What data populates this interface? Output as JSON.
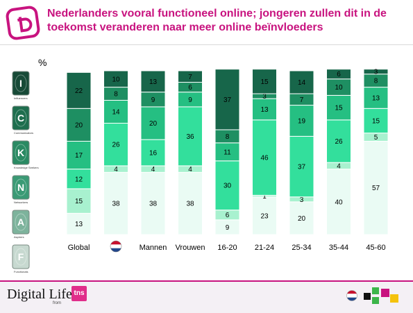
{
  "header": {
    "title_line1": "Nederlanders vooral functioneel online; jongeren zullen dit in de",
    "title_line2": "toekomst veranderen naar meer online beïnvloeders"
  },
  "unit_label": "%",
  "legend": [
    {
      "letter": "I",
      "name": "Influencers"
    },
    {
      "letter": "C",
      "name": "Communicators"
    },
    {
      "letter": "K",
      "name": "Knowledge Seekers"
    },
    {
      "letter": "N",
      "name": "Networkers"
    },
    {
      "letter": "A",
      "name": "Aspirers"
    },
    {
      "letter": "F",
      "name": "Functionals"
    }
  ],
  "footer": {
    "brand": "Digital Life",
    "brand_sub": "from",
    "tns_label": "tns",
    "flag_icon": "netherlands-flag-icon",
    "logo_icon": "colored-squares-logo-icon"
  },
  "colors": {
    "title": "#c8137f",
    "I": "#17664a",
    "C": "#1e8f62",
    "K": "#25bf82",
    "N": "#33df9c",
    "A": "#a8f1cf",
    "F": "#eafbf4"
  },
  "chart_data": {
    "type": "bar",
    "stacked": true,
    "categories": [
      "Global",
      "netherlands-flag-icon",
      "Mannen",
      "Vrouwen",
      "16-20",
      "21-24",
      "25-34",
      "35-44",
      "45-60"
    ],
    "series": [
      {
        "name": "Functionals",
        "values": [
          13,
          38,
          38,
          38,
          9,
          23,
          20,
          40,
          57
        ]
      },
      {
        "name": "Aspirers",
        "values": [
          15,
          4,
          4,
          4,
          6,
          1,
          3,
          4,
          5
        ]
      },
      {
        "name": "Networkers",
        "values": [
          12,
          26,
          16,
          36,
          30,
          46,
          37,
          26,
          15
        ]
      },
      {
        "name": "Knowledge Seekers",
        "values": [
          17,
          14,
          20,
          9,
          11,
          13,
          19,
          15,
          13
        ]
      },
      {
        "name": "Communicators",
        "values": [
          20,
          8,
          9,
          6,
          8,
          3,
          7,
          10,
          8
        ]
      },
      {
        "name": "Influencers",
        "values": [
          22,
          10,
          13,
          7,
          37,
          15,
          14,
          6,
          3
        ]
      }
    ],
    "ylabel": "%",
    "ylim": [
      0,
      100
    ],
    "grid": false,
    "legend": "left"
  }
}
